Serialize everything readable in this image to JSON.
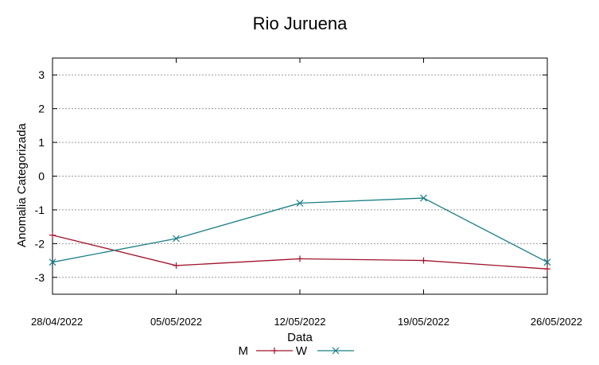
{
  "chart_data": {
    "type": "line",
    "title": "Rio Juruena",
    "xlabel": "Data",
    "ylabel": "Anomalia Categorizada",
    "x": [
      "28/04/2022",
      "05/05/2022",
      "12/05/2022",
      "19/05/2022",
      "26/05/2022"
    ],
    "ylim": [
      -3.5,
      3.5
    ],
    "yticks": [
      3,
      2,
      1,
      0,
      -1,
      -2,
      -3
    ],
    "grid": true,
    "legend": "bottom-center",
    "series": [
      {
        "name": "M",
        "color": "#a0142d",
        "marker": "plus",
        "values": [
          -1.75,
          -2.65,
          -2.45,
          -2.5,
          -2.75
        ]
      },
      {
        "name": "W",
        "color": "#1a7f86",
        "marker": "cross",
        "values": [
          -2.55,
          -1.85,
          -0.8,
          -0.65,
          -2.55
        ]
      }
    ]
  }
}
